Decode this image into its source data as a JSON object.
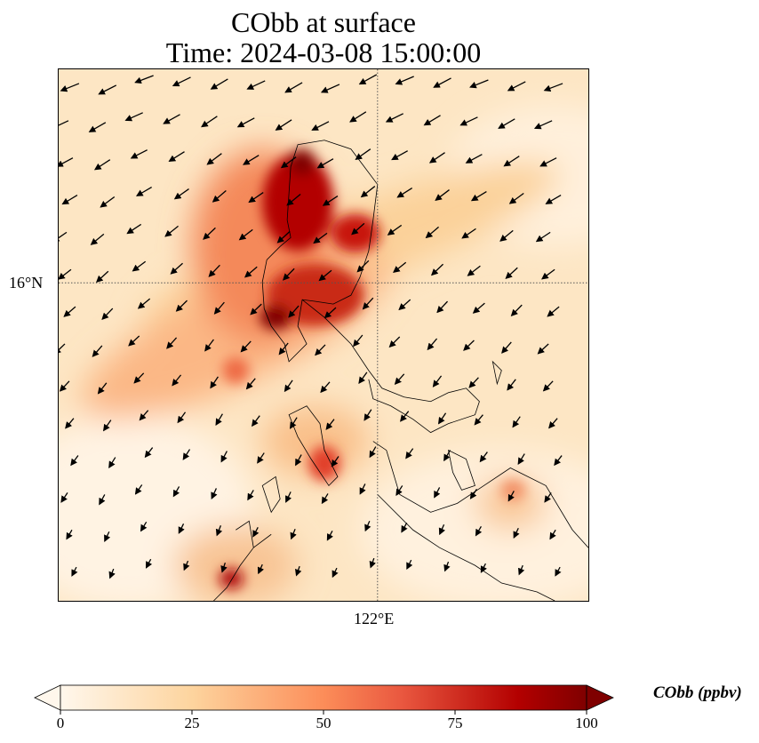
{
  "title": {
    "line1": "CObb at surface",
    "line2": "Time: 2024-03-08 15:00:00"
  },
  "map": {
    "lat_label": "16°N",
    "lon_label": "122°E"
  },
  "chart_data": {
    "type": "heatmap",
    "variable": "CObb",
    "units": "ppbv",
    "level": "surface",
    "time": "2024-03-08 15:00:00",
    "hotspots": [
      {
        "lon": 121.4,
        "lat": 16.8,
        "value": 100
      },
      {
        "lon": 121.8,
        "lat": 16.5,
        "value": 85
      },
      {
        "lon": 121.5,
        "lat": 15.8,
        "value": 95
      },
      {
        "lon": 121.2,
        "lat": 15.0,
        "value": 55
      },
      {
        "lon": 121.5,
        "lat": 14.5,
        "value": 65
      },
      {
        "lon": 122.8,
        "lat": 14.2,
        "value": 45
      },
      {
        "lon": 120.8,
        "lat": 13.6,
        "value": 80
      }
    ]
  },
  "colorbar": {
    "label": "CObb (ppbv)",
    "ticks": [
      "0",
      "25",
      "50",
      "75",
      "100"
    ],
    "range": [
      0,
      100
    ],
    "extend": "both",
    "colors": [
      "#fff7ec",
      "#fdd49e",
      "#fc8d59",
      "#d7301f",
      "#b30000",
      "#7f0000"
    ]
  }
}
